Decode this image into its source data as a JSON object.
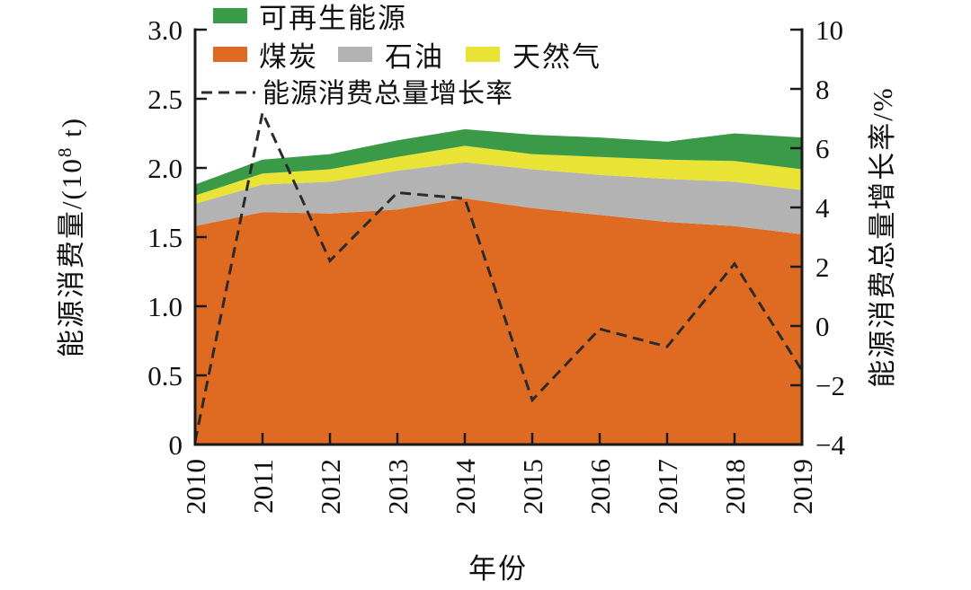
{
  "figure": {
    "x_axis_title": "年份",
    "left_axis_title": {
      "pre": "能源消费量/(10",
      "sup": "8",
      "post": " t)"
    },
    "right_axis_title": "能源消费总量增长率/%",
    "legend": {
      "renewable": "可再生能源",
      "coal": "煤炭",
      "oil": "石油",
      "gas": "天然气",
      "growth": "能源消费总量增长率"
    }
  },
  "colors": {
    "coal": "#df6a21",
    "oil": "#b3b3b3",
    "gas": "#e8e335",
    "renewable": "#3a9a47",
    "growth_line": "#2b2b2b",
    "axis": "#1a1a1a"
  },
  "chart_data": {
    "type": "area",
    "title": "",
    "categories": [
      "2010",
      "2011",
      "2012",
      "2013",
      "2014",
      "2015",
      "2016",
      "2017",
      "2018",
      "2019"
    ],
    "xlabel": "年份",
    "ylabel_left": "能源消费量/(10⁸ t)",
    "ylabel_right": "能源消费总量增长率/%",
    "ylim_left": [
      0,
      3.0
    ],
    "yticks_left": [
      0,
      0.5,
      1.0,
      1.5,
      2.0,
      2.5,
      3.0
    ],
    "ytick_labels_left": [
      "0",
      "0.5",
      "1.0",
      "1.5",
      "2.0",
      "2.5",
      "3.0"
    ],
    "ylim_right": [
      -4,
      10
    ],
    "yticks_right": [
      -4,
      -2,
      0,
      2,
      4,
      6,
      8,
      10
    ],
    "ytick_labels_right": [
      "−4",
      "−2",
      "0",
      "2",
      "4",
      "6",
      "8",
      "10"
    ],
    "grid": false,
    "legend_position": "top-left",
    "stacking_order_bottom_to_top": [
      "coal",
      "oil",
      "gas",
      "renewable"
    ],
    "series": [
      {
        "key": "coal",
        "name": "煤炭",
        "values": [
          1.58,
          1.68,
          1.67,
          1.7,
          1.78,
          1.71,
          1.66,
          1.61,
          1.58,
          1.52
        ]
      },
      {
        "key": "oil",
        "name": "石油",
        "values": [
          0.16,
          0.2,
          0.23,
          0.28,
          0.26,
          0.28,
          0.29,
          0.31,
          0.32,
          0.32
        ]
      },
      {
        "key": "gas",
        "name": "天然气",
        "values": [
          0.06,
          0.08,
          0.09,
          0.1,
          0.12,
          0.11,
          0.13,
          0.14,
          0.15,
          0.15
        ]
      },
      {
        "key": "renewable",
        "name": "可再生能源",
        "values": [
          0.08,
          0.1,
          0.11,
          0.12,
          0.12,
          0.14,
          0.14,
          0.13,
          0.2,
          0.23
        ]
      }
    ],
    "growth_line": {
      "key": "growth",
      "name": "能源消费总量增长率",
      "axis": "right",
      "style": "dashed",
      "values": [
        -3.9,
        7.2,
        2.2,
        4.5,
        4.3,
        -2.5,
        -0.1,
        -0.7,
        2.1,
        -1.5
      ]
    }
  }
}
